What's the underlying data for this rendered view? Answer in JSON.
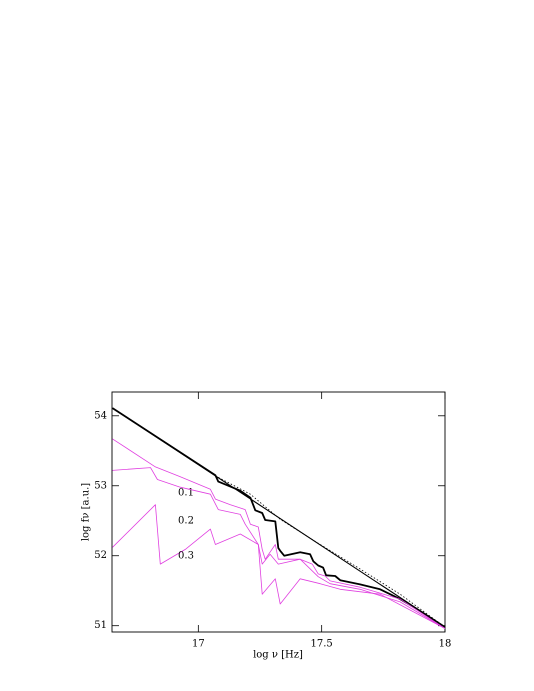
{
  "chart_data": {
    "type": "line",
    "xlabel": "log ν [Hz]",
    "ylabel": "log fν [a.u.]",
    "xlim": [
      16.65,
      18.0
    ],
    "ylim": [
      50.91,
      54.34
    ],
    "xticks": [
      17,
      17.5,
      18
    ],
    "yticks": [
      51,
      52,
      53,
      54
    ],
    "series": [
      {
        "color": "#000000",
        "x": [
          16.652,
          18.0
        ],
        "values": [
          54.11,
          50.98
        ]
      },
      {
        "color": "#000000",
        "x": [
          16.652,
          17.069,
          17.081,
          17.17,
          17.211,
          17.231,
          17.259,
          17.271,
          17.312,
          17.324,
          17.332,
          17.348,
          17.413,
          17.453,
          17.466,
          17.486,
          17.506,
          17.518,
          17.555,
          17.575,
          17.656,
          17.737,
          17.818,
          17.899,
          18.0
        ],
        "values": [
          54.11,
          53.15,
          53.06,
          52.93,
          52.83,
          52.65,
          52.61,
          52.51,
          52.49,
          52.11,
          52.07,
          52.0,
          52.05,
          52.02,
          51.92,
          51.86,
          51.83,
          51.72,
          51.71,
          51.65,
          51.59,
          51.52,
          51.38,
          51.21,
          50.98
        ]
      },
      {
        "color": "#000000",
        "x": [
          17.081,
          17.211,
          17.332,
          17.494,
          17.656,
          17.818,
          18.0
        ],
        "values": [
          53.12,
          52.88,
          52.52,
          52.16,
          51.81,
          51.45,
          50.98
        ]
      },
      {
        "name": "0.1",
        "color": "#e040e0",
        "x": [
          16.652,
          16.826,
          16.927,
          17.049,
          17.069,
          17.13,
          17.19,
          17.211,
          17.243,
          17.259,
          17.271,
          17.312,
          17.324,
          17.34,
          17.413,
          17.462,
          17.486,
          17.514,
          17.534,
          17.656,
          17.818,
          18.0
        ],
        "values": [
          53.67,
          53.27,
          53.13,
          52.95,
          52.81,
          52.73,
          52.66,
          52.45,
          52.41,
          52.09,
          51.95,
          52.16,
          51.95,
          51.95,
          51.95,
          51.88,
          51.74,
          51.71,
          51.64,
          51.55,
          51.38,
          50.96
        ]
      },
      {
        "name": "0.2",
        "color": "#e040e0",
        "x": [
          16.652,
          16.806,
          16.834,
          16.927,
          17.049,
          17.081,
          17.17,
          17.19,
          17.243,
          17.259,
          17.291,
          17.324,
          17.413,
          17.486,
          17.534,
          17.656,
          17.818,
          18.0
        ],
        "values": [
          53.22,
          53.26,
          53.09,
          52.98,
          52.88,
          52.66,
          52.59,
          52.45,
          52.16,
          51.88,
          52.02,
          51.88,
          51.95,
          51.7,
          51.6,
          51.52,
          51.34,
          50.96
        ]
      },
      {
        "name": "0.3",
        "color": "#e040e0",
        "x": [
          16.652,
          16.826,
          16.846,
          16.947,
          17.049,
          17.069,
          17.17,
          17.243,
          17.259,
          17.312,
          17.332,
          17.413,
          17.494,
          17.575,
          17.737,
          18.0
        ],
        "values": [
          52.12,
          52.73,
          51.88,
          52.09,
          52.38,
          52.16,
          52.31,
          52.16,
          51.45,
          51.67,
          51.31,
          51.67,
          51.6,
          51.52,
          51.45,
          50.96
        ]
      }
    ]
  }
}
